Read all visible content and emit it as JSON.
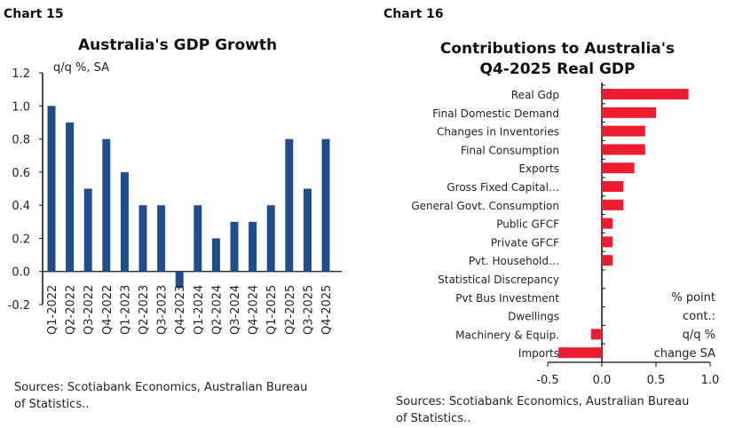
{
  "chart_data": [
    {
      "type": "bar",
      "header": "Chart 15",
      "title": "Australia's GDP Growth",
      "unit_label": "q/q %, SA",
      "categories": [
        "Q1-2022",
        "Q2-2022",
        "Q3-2022",
        "Q4-2022",
        "Q1-2023",
        "Q2-2023",
        "Q3-2023",
        "Q4-2023",
        "Q1-2024",
        "Q2-2024",
        "Q3-2024",
        "Q4-2024",
        "Q1-2025",
        "Q2-2025",
        "Q3-2025",
        "Q4-2025"
      ],
      "values": [
        1.0,
        0.9,
        0.5,
        0.8,
        0.6,
        0.4,
        0.4,
        -0.1,
        0.4,
        0.2,
        0.3,
        0.3,
        0.4,
        0.8,
        0.5,
        0.8
      ],
      "ylim": [
        -0.2,
        1.2
      ],
      "yticks": [
        "1.2",
        "1.0",
        "0.8",
        "0.6",
        "0.4",
        "0.2",
        "0.0",
        "-0.2"
      ],
      "color": "#1f4e8c",
      "grid": false,
      "source": [
        "Sources: Scotiabank Economics, Australian Bureau",
        "of Statistics.."
      ]
    },
    {
      "type": "bar",
      "orientation": "horizontal",
      "header": "Chart 16",
      "title": [
        "Contributions to Australia's",
        "Q4-2025 Real GDP"
      ],
      "unit_label": [
        "% point",
        "cont.:",
        "q/q %",
        "change SA"
      ],
      "categories": [
        "Real Gdp",
        "Final Domestic Demand",
        "Changes in Inventories",
        "Final Consumption",
        "Exports",
        "Gross Fixed Capital…",
        "General Govt. Consumption",
        "Public GFCF",
        "Private GFCF",
        "Pvt. Household…",
        "Statistical Discrepancy",
        "Pvt Bus Investment",
        "Dwellings",
        "Machinery & Equip.",
        "Imports"
      ],
      "values": [
        0.8,
        0.5,
        0.4,
        0.4,
        0.3,
        0.2,
        0.2,
        0.1,
        0.1,
        0.1,
        0.0,
        0.0,
        0.0,
        -0.1,
        -0.4
      ],
      "xlim": [
        -0.5,
        1.0
      ],
      "xticks": [
        "-0.5",
        "0.0",
        "0.5",
        "1.0"
      ],
      "color": "#ed1c2e",
      "grid": false,
      "source": [
        "Sources: Scotiabank Economics, Australian Bureau",
        "of Statistics.."
      ]
    }
  ]
}
